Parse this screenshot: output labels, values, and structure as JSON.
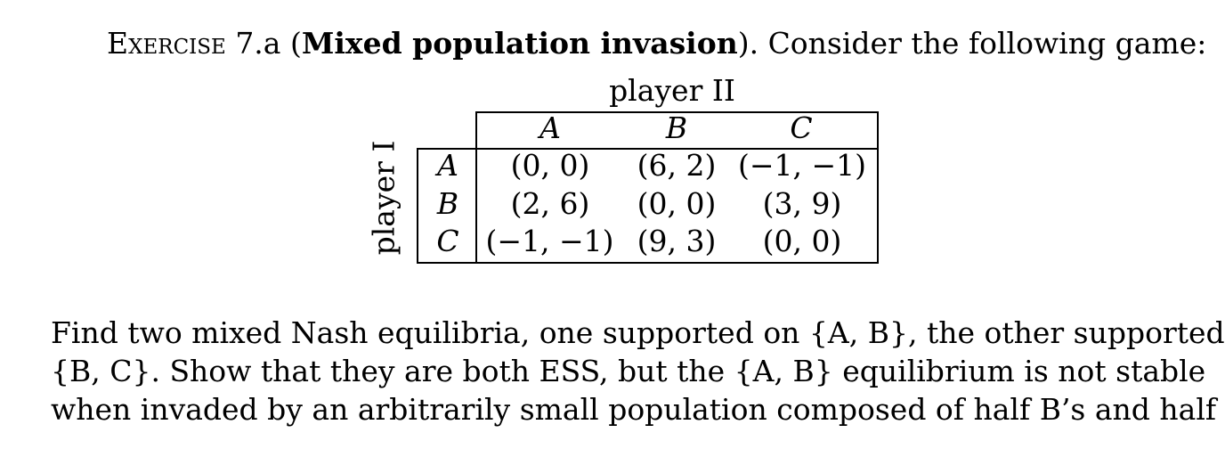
{
  "exercise": {
    "label": "Exercise",
    "number": "7.a",
    "title": "Mixed population invasion",
    "intro": "Consider the following game:"
  },
  "game": {
    "column_player": "player II",
    "row_player": "player I",
    "columns": [
      "A",
      "B",
      "C"
    ],
    "rows": [
      {
        "label": "A",
        "payoffs": [
          "(0, 0)",
          "(6, 2)",
          "(−1, −1)"
        ]
      },
      {
        "label": "B",
        "payoffs": [
          "(2, 6)",
          "(0, 0)",
          "(3, 9)"
        ]
      },
      {
        "label": "C",
        "payoffs": [
          "(−1, −1)",
          "(9, 3)",
          "(0, 0)"
        ]
      }
    ]
  },
  "question": {
    "lines": [
      "Find two mixed Nash equilibria, one supported on {A, B}, the other supported on",
      "{B, C}. Show that they are both ESS, but the {A, B} equilibrium is not stable",
      "when invaded by an arbitrarily small population composed of half B’s and half C’s."
    ]
  }
}
